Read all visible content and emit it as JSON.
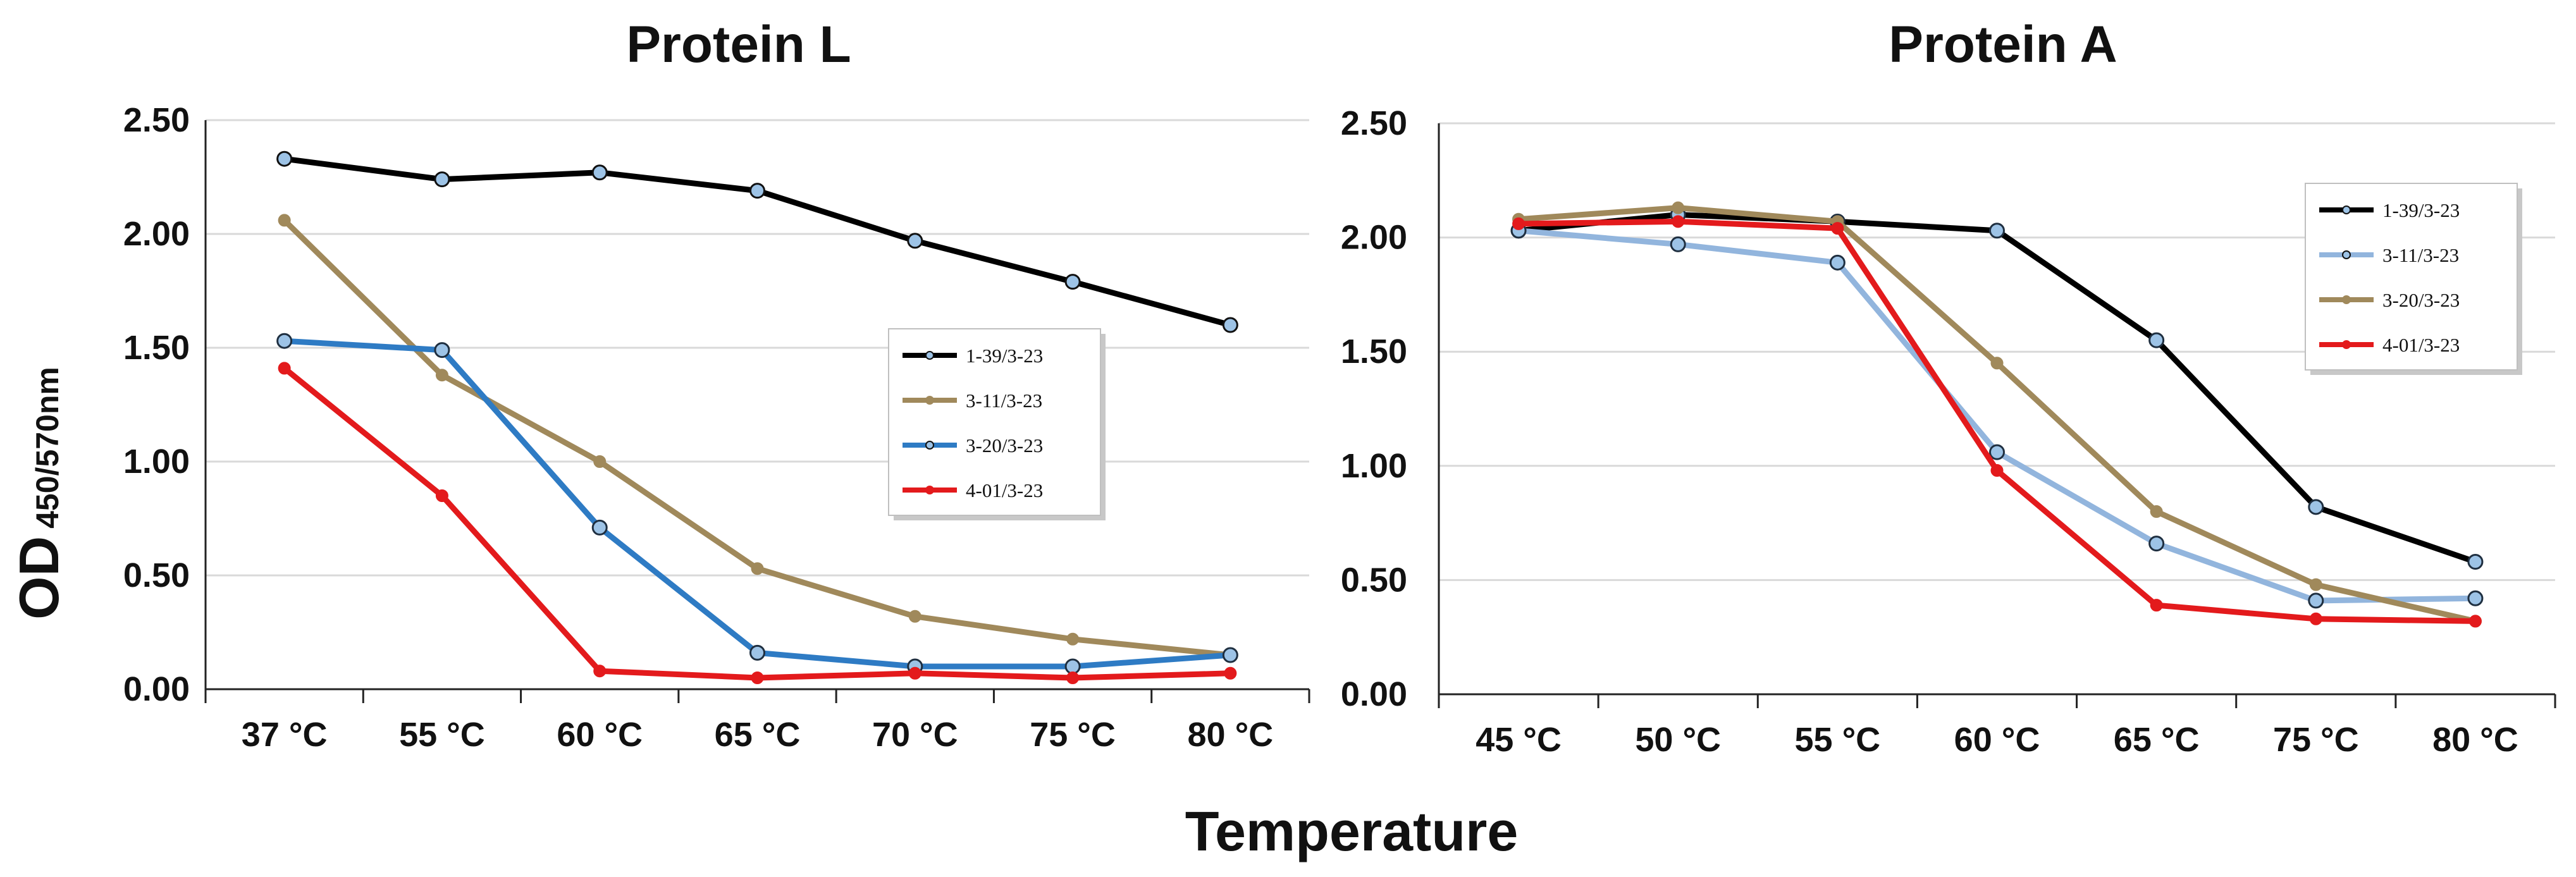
{
  "ylabel": {
    "main": "OD",
    "subscript": "450/570nm"
  },
  "xlabel": "Temperature",
  "chart_data": [
    {
      "type": "line",
      "title": "Protein L",
      "categories": [
        "37 °C",
        "55 °C",
        "60 °C",
        "65 °C",
        "70 °C",
        "75 °C",
        "80 °C"
      ],
      "ylim": [
        0,
        2.5
      ],
      "yticks": [
        "0.00",
        "0.50",
        "1.00",
        "1.50",
        "2.00",
        "2.50"
      ],
      "grid": true,
      "legend_position": "center-right",
      "series": [
        {
          "name": "1-39/3-23",
          "color": "#000000",
          "marker": "open-circle",
          "values": [
            2.33,
            2.24,
            2.27,
            2.19,
            1.97,
            1.79,
            1.6
          ]
        },
        {
          "name": "3-11/3-23",
          "color": "#A0895B",
          "marker": "dot",
          "values": [
            2.06,
            1.38,
            1.0,
            0.53,
            0.32,
            0.22,
            0.15
          ]
        },
        {
          "name": "3-20/3-23",
          "color": "#2E7BC4",
          "marker": "filled-circle",
          "values": [
            1.53,
            1.49,
            0.71,
            0.16,
            0.1,
            0.1,
            0.15
          ]
        },
        {
          "name": "4-01/3-23",
          "color": "#E31A1C",
          "marker": "dot",
          "values": [
            1.41,
            0.85,
            0.08,
            0.05,
            0.07,
            0.05,
            0.07
          ]
        }
      ]
    },
    {
      "type": "line",
      "title": "Protein A",
      "categories": [
        "45 °C",
        "50 °C",
        "55 °C",
        "60 °C",
        "65 °C",
        "75 °C",
        "80 °C"
      ],
      "ylim": [
        0,
        2.5
      ],
      "yticks": [
        "0.00",
        "0.50",
        "1.00",
        "1.50",
        "2.00",
        "2.50"
      ],
      "grid": true,
      "legend_position": "top-right",
      "series": [
        {
          "name": "1-39/3-23",
          "color": "#000000",
          "marker": "filled-circle",
          "values": [
            2.03,
            2.1,
            2.07,
            2.03,
            1.55,
            0.82,
            0.58
          ]
        },
        {
          "name": "3-11/3-23",
          "color": "#92B5DD",
          "marker": "filled-circle",
          "values": [
            2.03,
            1.97,
            1.89,
            1.06,
            0.66,
            0.41,
            0.42
          ]
        },
        {
          "name": "3-20/3-23",
          "color": "#A0895B",
          "marker": "dot",
          "values": [
            2.08,
            2.13,
            2.07,
            1.45,
            0.8,
            0.48,
            0.32
          ]
        },
        {
          "name": "4-01/3-23",
          "color": "#E31A1C",
          "marker": "dot",
          "values": [
            2.06,
            2.07,
            2.04,
            0.98,
            0.39,
            0.33,
            0.32
          ]
        }
      ]
    }
  ]
}
